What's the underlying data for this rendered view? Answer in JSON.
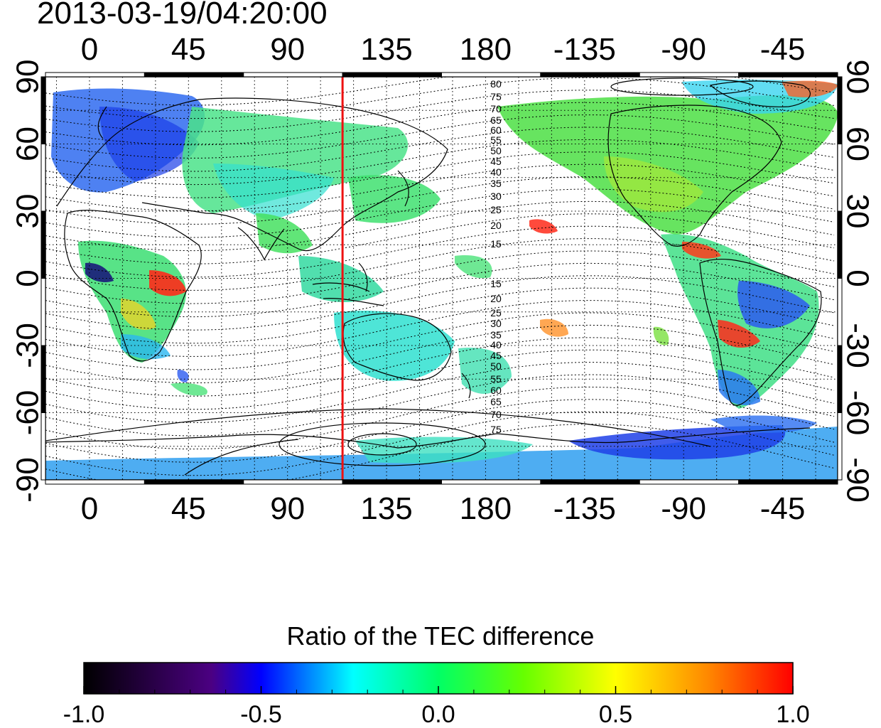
{
  "timestamp": "2013-03-19/04:20:00",
  "map": {
    "lon_ticks": [
      "0",
      "45",
      "90",
      "135",
      "180",
      "-135",
      "-90",
      "-45"
    ],
    "lat_ticks": [
      "90",
      "60",
      "30",
      "0",
      "-30",
      "-60",
      "-90"
    ],
    "lon_range": [
      -20,
      340
    ],
    "lat_range": [
      -90,
      90
    ],
    "marker_longitude": 115,
    "marker_color": "#ee1111",
    "grid": "dotted 15 degree"
  },
  "contour_labels_north": [
    "80",
    "75",
    "70",
    "65",
    "60",
    "55",
    "50",
    "45",
    "40",
    "35",
    "30",
    "25",
    "20",
    "15"
  ],
  "contour_labels_south": [
    "15",
    "20",
    "25",
    "30",
    "35",
    "40",
    "45",
    "50",
    "55",
    "60",
    "65",
    "70",
    "75"
  ],
  "colorbar": {
    "title": "Ratio of the TEC difference",
    "ticks": [
      "-1.0",
      "-0.5",
      "0.0",
      "0.5",
      "1.0"
    ],
    "min": -1.0,
    "max": 1.0,
    "colors": [
      "#000000",
      "#4b0082",
      "#0000ff",
      "#00ffff",
      "#00ff00",
      "#ffff00",
      "#ff0000"
    ]
  }
}
